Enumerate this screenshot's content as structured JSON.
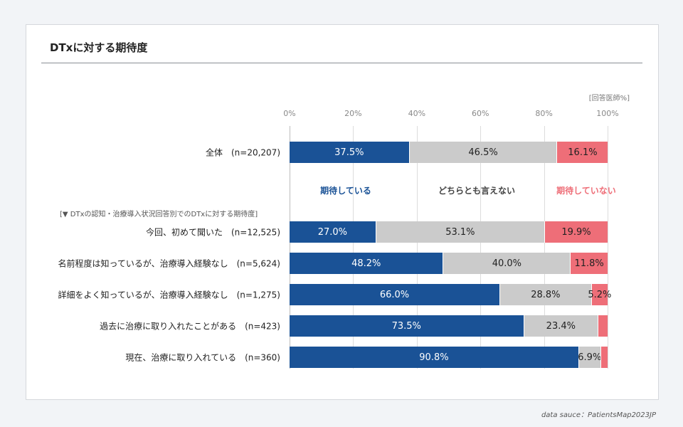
{
  "title": "DTxに対する期待度",
  "unit_note": "[回答医師%]",
  "source_note": "data sauce：PatientsMap2023JP",
  "subgroup_heading": "[▼ DTxの認知・治療導入状況回答別でのDTxに対する期待度]",
  "colors": {
    "expecting": "#1a5296",
    "neutral": "#cbcbcb",
    "not_expecting": "#ee6e78"
  },
  "chart_data": {
    "type": "bar",
    "orientation": "horizontal-stacked-100",
    "xlim": [
      0,
      100
    ],
    "x_ticks": [
      "0%",
      "20%",
      "40%",
      "60%",
      "80%",
      "100%"
    ],
    "legend": [
      "期待している",
      "どちらとも言えない",
      "期待していない"
    ],
    "categories": [
      "全体　(n=20,207)",
      "今回、初めて聞いた　(n=12,525)",
      "名前程度は知っているが、治療導入経験なし　(n=5,624)",
      "詳細をよく知っているが、治療導入経験なし　(n=1,275)",
      "過去に治療に取り入れたことがある　(n=423)",
      "現在、治療に取り入れている　(n=360)"
    ],
    "series": [
      {
        "name": "期待している",
        "values": [
          37.5,
          27.0,
          48.2,
          66.0,
          73.5,
          90.8
        ],
        "labels": [
          "37.5%",
          "27.0%",
          "48.2%",
          "66.0%",
          "73.5%",
          "90.8%"
        ]
      },
      {
        "name": "どちらとも言えない",
        "values": [
          46.5,
          53.1,
          40.0,
          28.8,
          23.4,
          6.9
        ],
        "labels": [
          "46.5%",
          "53.1%",
          "40.0%",
          "28.8%",
          "23.4%",
          "6.9%"
        ]
      },
      {
        "name": "期待していない",
        "values": [
          16.1,
          19.9,
          11.8,
          5.2,
          3.1,
          2.3
        ],
        "labels": [
          "16.1%",
          "19.9%",
          "11.8%",
          "5.2%",
          "",
          ""
        ]
      }
    ]
  }
}
